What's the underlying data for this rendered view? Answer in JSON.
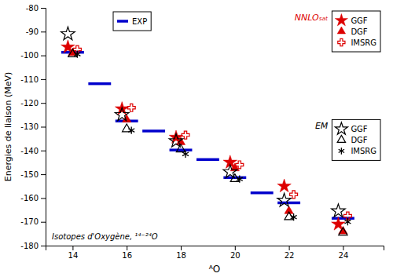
{
  "chart_data": {
    "type": "scatter",
    "xlabel": "ᴬO",
    "ylabel": "Energies de liaison (MeV)",
    "annotation": "Isotopes d'Oxygène, ¹⁴⁻²⁴O",
    "xlim": [
      13.0,
      25.5
    ],
    "ylim": [
      -180,
      -80
    ],
    "xticks": [
      14,
      16,
      18,
      20,
      22,
      24
    ],
    "yticks": [
      -180,
      -170,
      -160,
      -150,
      -140,
      -130,
      -120,
      -110,
      -100,
      -90,
      -80
    ],
    "grid": false,
    "legend": "upper right",
    "series": [
      {
        "name": "EXP",
        "marker": "hline",
        "color": "#0000cc",
        "x": [
          14.0,
          15.0,
          16.0,
          17.0,
          18.0,
          19.0,
          20.0,
          21.0,
          22.0,
          24.0
        ],
        "values": [
          -98.7,
          -111.9,
          -127.6,
          -131.8,
          -139.8,
          -143.8,
          -151.4,
          -157.8,
          -162.0,
          -168.5
        ]
      },
      {
        "name": "GGF",
        "group": "NNLOₛₐₜ",
        "marker": "star",
        "color": "#dd0000",
        "x": [
          14,
          16,
          18,
          20,
          22,
          24
        ],
        "values": [
          -96.5,
          -122.5,
          -134.5,
          -145.0,
          -155.0,
          -171.0
        ]
      },
      {
        "name": "DGF",
        "group": "NNLOₛₐₜ",
        "marker": "triangle",
        "color": "#dd0000",
        "x": [
          14,
          16,
          18,
          20,
          22,
          24
        ],
        "values": [
          -99.0,
          -127.0,
          -136.5,
          -147.5,
          -165.5,
          -174.0
        ]
      },
      {
        "name": "IMSRG",
        "group": "NNLOₛₐₜ",
        "marker": "plus-open",
        "color": "#dd0000",
        "x": [
          14,
          16,
          18,
          20,
          22,
          24
        ],
        "values": [
          -97.5,
          -122.0,
          -133.5,
          -146.0,
          -158.5,
          -167.5
        ]
      },
      {
        "name": "GGF",
        "group": "EM",
        "marker": "star-open",
        "color": "#000000",
        "x": [
          14,
          16,
          18,
          20,
          22,
          24
        ],
        "values": [
          -91.0,
          -125.0,
          -136.0,
          -149.0,
          -161.0,
          -165.5
        ]
      },
      {
        "name": "DGF",
        "group": "EM",
        "marker": "triangle-open",
        "color": "#000000",
        "x": [
          14,
          16,
          18,
          20,
          22,
          24
        ],
        "values": [
          -99.5,
          -131.0,
          -139.5,
          -152.0,
          -168.0,
          -174.5
        ]
      },
      {
        "name": "IMSRG",
        "group": "EM",
        "marker": "asterisk",
        "color": "#000000",
        "x": [
          14,
          16,
          18,
          20,
          22,
          24
        ],
        "values": [
          -99.5,
          -131.5,
          -141.5,
          -152.0,
          -168.0,
          -170.0
        ]
      }
    ]
  }
}
